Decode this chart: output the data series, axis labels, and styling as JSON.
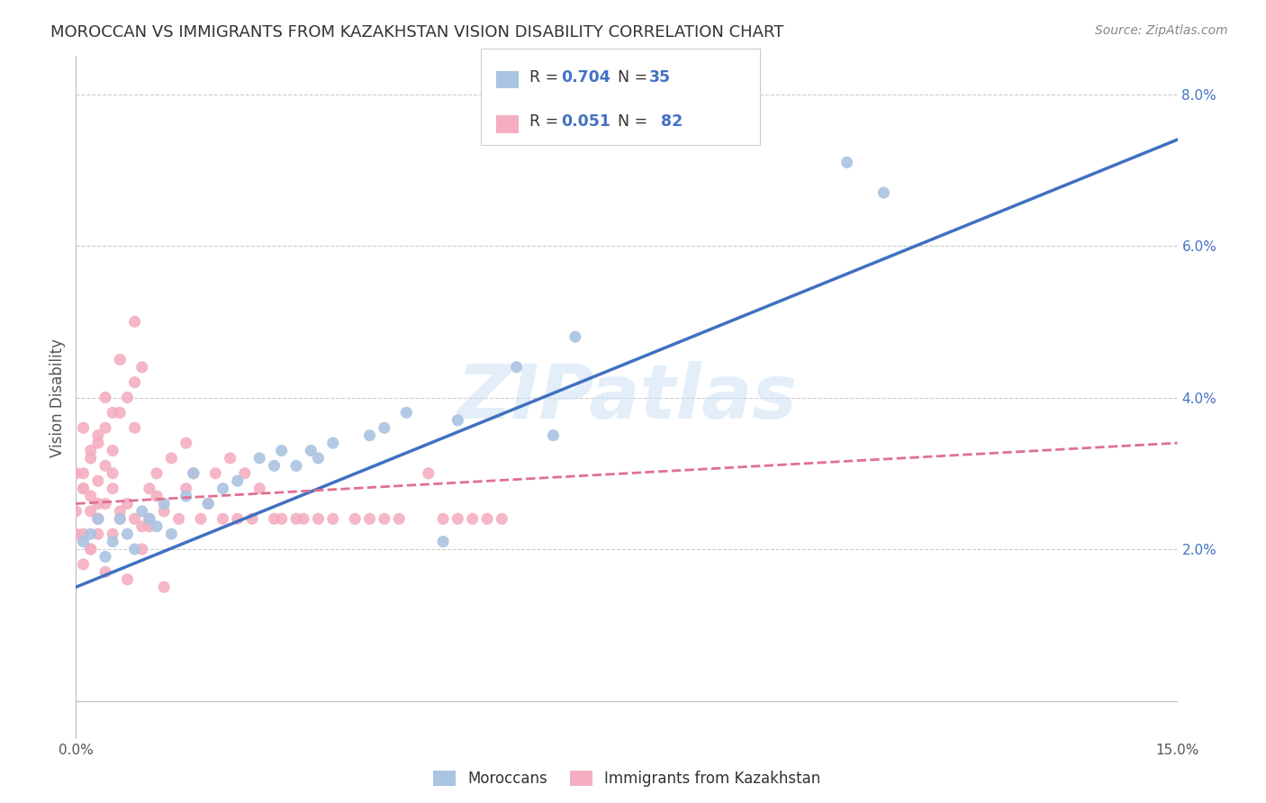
{
  "title": "MOROCCAN VS IMMIGRANTS FROM KAZAKHSTAN VISION DISABILITY CORRELATION CHART",
  "source": "Source: ZipAtlas.com",
  "ylabel": "Vision Disability",
  "xlim": [
    0.0,
    0.15
  ],
  "ylim": [
    -0.005,
    0.085
  ],
  "moroccan_R": 0.704,
  "moroccan_N": 35,
  "kazakh_R": 0.051,
  "kazakh_N": 82,
  "moroccan_color": "#aac4e2",
  "kazakh_color": "#f4aec0",
  "moroccan_line_color": "#4070c0",
  "kazakh_line_color": "#e07090",
  "watermark": "ZIPatlas",
  "blue_line_x0": 0.0,
  "blue_line_y0": 0.015,
  "blue_line_x1": 0.15,
  "blue_line_y1": 0.074,
  "pink_line_x0": 0.0,
  "pink_line_y0": 0.026,
  "pink_line_x1": 0.15,
  "pink_line_y1": 0.034,
  "moroccan_x": [
    0.001,
    0.002,
    0.003,
    0.004,
    0.005,
    0.006,
    0.007,
    0.008,
    0.009,
    0.01,
    0.011,
    0.012,
    0.013,
    0.015,
    0.016,
    0.018,
    0.02,
    0.022,
    0.025,
    0.027,
    0.028,
    0.03,
    0.032,
    0.033,
    0.035,
    0.04,
    0.042,
    0.045,
    0.05,
    0.052,
    0.06,
    0.065,
    0.068,
    0.105,
    0.11
  ],
  "moroccan_y": [
    0.021,
    0.022,
    0.024,
    0.019,
    0.021,
    0.024,
    0.022,
    0.02,
    0.025,
    0.024,
    0.023,
    0.026,
    0.022,
    0.027,
    0.03,
    0.026,
    0.028,
    0.029,
    0.032,
    0.031,
    0.033,
    0.031,
    0.033,
    0.032,
    0.034,
    0.035,
    0.036,
    0.038,
    0.021,
    0.037,
    0.044,
    0.035,
    0.048,
    0.071,
    0.067
  ],
  "kazakh_x": [
    0.001,
    0.001,
    0.001,
    0.002,
    0.002,
    0.002,
    0.002,
    0.003,
    0.003,
    0.003,
    0.003,
    0.004,
    0.004,
    0.004,
    0.005,
    0.005,
    0.005,
    0.006,
    0.006,
    0.006,
    0.007,
    0.007,
    0.008,
    0.008,
    0.008,
    0.009,
    0.009,
    0.01,
    0.01,
    0.011,
    0.012,
    0.013,
    0.014,
    0.015,
    0.015,
    0.016,
    0.017,
    0.018,
    0.019,
    0.02,
    0.021,
    0.022,
    0.023,
    0.024,
    0.025,
    0.027,
    0.028,
    0.03,
    0.031,
    0.033,
    0.035,
    0.038,
    0.04,
    0.042,
    0.044,
    0.048,
    0.05,
    0.052,
    0.054,
    0.056,
    0.058,
    0.0,
    0.0,
    0.0,
    0.001,
    0.001,
    0.001,
    0.002,
    0.002,
    0.003,
    0.003,
    0.004,
    0.004,
    0.005,
    0.005,
    0.006,
    0.007,
    0.008,
    0.009,
    0.01,
    0.011,
    0.012
  ],
  "kazakh_y": [
    0.028,
    0.022,
    0.03,
    0.032,
    0.025,
    0.027,
    0.02,
    0.034,
    0.029,
    0.024,
    0.022,
    0.036,
    0.031,
    0.026,
    0.038,
    0.033,
    0.028,
    0.025,
    0.038,
    0.024,
    0.04,
    0.026,
    0.042,
    0.036,
    0.024,
    0.044,
    0.023,
    0.028,
    0.024,
    0.03,
    0.025,
    0.032,
    0.024,
    0.034,
    0.028,
    0.03,
    0.024,
    0.026,
    0.03,
    0.024,
    0.032,
    0.024,
    0.03,
    0.024,
    0.028,
    0.024,
    0.024,
    0.024,
    0.024,
    0.024,
    0.024,
    0.024,
    0.024,
    0.024,
    0.024,
    0.03,
    0.024,
    0.024,
    0.024,
    0.024,
    0.024,
    0.025,
    0.03,
    0.022,
    0.036,
    0.028,
    0.018,
    0.033,
    0.02,
    0.026,
    0.035,
    0.04,
    0.017,
    0.03,
    0.022,
    0.045,
    0.016,
    0.05,
    0.02,
    0.023,
    0.027,
    0.015
  ]
}
